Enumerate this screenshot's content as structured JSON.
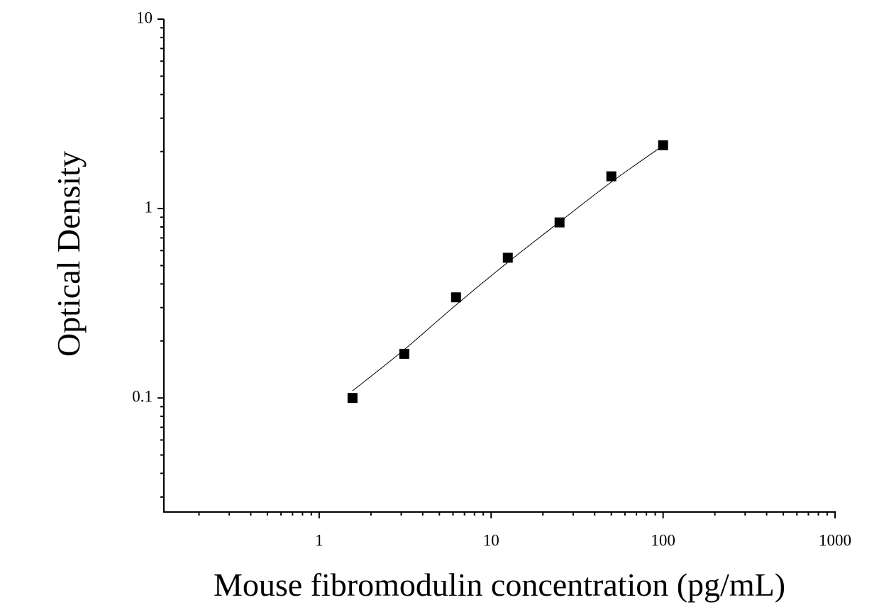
{
  "chart_data": {
    "type": "scatter",
    "xlabel": "Mouse fibromodulin concentration (pg/mL)",
    "ylabel": "Optical Density",
    "xscale": "log",
    "yscale": "log",
    "xlim": [
      0.125,
      1000
    ],
    "ylim": [
      0.025,
      10
    ],
    "xticks": [
      1,
      10,
      100,
      1000
    ],
    "yticks": [
      0.1,
      1,
      10
    ],
    "xminorticks": [
      0.2,
      0.3,
      0.4,
      0.5,
      0.6,
      0.7,
      0.8,
      0.9,
      2,
      3,
      4,
      5,
      6,
      7,
      8,
      9,
      20,
      30,
      40,
      50,
      60,
      70,
      80,
      90,
      200,
      300,
      400,
      500,
      600,
      700,
      800,
      900
    ],
    "yminorticks": [
      0.03,
      0.04,
      0.05,
      0.06,
      0.07,
      0.08,
      0.09,
      0.2,
      0.3,
      0.4,
      0.5,
      0.6,
      0.7,
      0.8,
      0.9,
      2,
      3,
      4,
      5,
      6,
      7,
      8,
      9
    ],
    "series": [
      {
        "type": "scatter",
        "marker": "square",
        "color": "#000000",
        "x": [
          1.5625,
          3.125,
          6.25,
          12.5,
          25,
          50,
          100
        ],
        "values": [
          0.1,
          0.171,
          0.34,
          0.55,
          0.845,
          1.48,
          2.16
        ]
      },
      {
        "type": "line",
        "color": "#000000",
        "x": [
          1.5625,
          3.125,
          6.25,
          12.5,
          25,
          50,
          100
        ],
        "values": [
          0.109,
          0.18,
          0.31,
          0.52,
          0.85,
          1.38,
          2.15
        ]
      }
    ]
  }
}
